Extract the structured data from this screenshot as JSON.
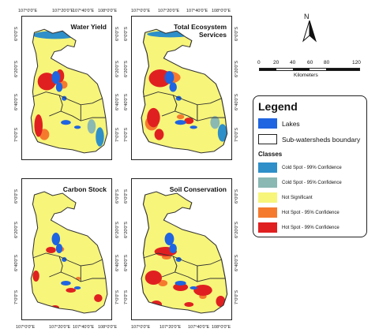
{
  "colors": {
    "cold99": "#2e8fc9",
    "cold95": "#8ab8b3",
    "not_significant": "#f7f57a",
    "hot95": "#f57a2e",
    "hot99": "#e02020",
    "lakes": "#1f64e0",
    "boundary": "#333333"
  },
  "panels": [
    {
      "title_lines": [
        "Water Yield"
      ],
      "pattern": "water"
    },
    {
      "title_lines": [
        "Total Ecosystem",
        "Services"
      ],
      "pattern": "total"
    },
    {
      "title_lines": [
        "Carbon Stock"
      ],
      "pattern": "carbon"
    },
    {
      "title_lines": [
        "Soil Conservation"
      ],
      "pattern": "soil"
    }
  ],
  "axes": {
    "lon_ticks": [
      "107°0'0\"E",
      "107°20'0\"E",
      "107°40'0\"E",
      "108°0'0\"E"
    ],
    "lat_ticks": [
      "6°0'0\"S",
      "6°20'0\"S",
      "6°40'0\"S",
      "7°0'0\"S"
    ]
  },
  "north_arrow": {
    "label": "N"
  },
  "scale_bar": {
    "ticks": [
      "0",
      "20",
      "40",
      "60",
      "80",
      "120"
    ],
    "unit": "Kilometers"
  },
  "legend": {
    "title": "Legend",
    "features": [
      {
        "label": "Lakes",
        "color": "#1f64e0"
      },
      {
        "label": "Sub-watersheds boundary",
        "color": "#ffffff"
      }
    ],
    "classes_heading": "Classes",
    "classes": [
      {
        "label": "Cold Spot - 99% Confidence",
        "color": "#2e8fc9"
      },
      {
        "label": "Cold Spot - 95% Confidence",
        "color": "#8ab8b3"
      },
      {
        "label": "Not Significant",
        "color": "#f7f57a"
      },
      {
        "label": "Hot Spot - 95% Confidence",
        "color": "#f57a2e"
      },
      {
        "label": "Hot Spot - 99% Confidence",
        "color": "#e02020"
      }
    ]
  }
}
